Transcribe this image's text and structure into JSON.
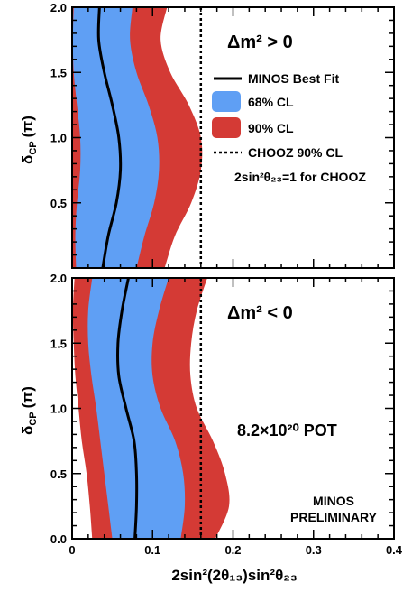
{
  "chart_data": [
    {
      "type": "area",
      "panel": "top",
      "annotation_title": "Δm² > 0",
      "xlim": [
        0,
        0.4
      ],
      "ylim": [
        0,
        2.0
      ],
      "x_ticks": [
        "0",
        "0.1",
        "0.2",
        "0.3",
        "0.4"
      ],
      "y_ticks": [
        "0.5",
        "1.0",
        "1.5",
        "2.0"
      ],
      "ylabel_main": "δ",
      "ylabel_sub": "CP",
      "ylabel_unit": "(π)",
      "chooz_limit_x": 0.16,
      "legend": [
        {
          "key": "best_fit",
          "label": "MINOS Best Fit"
        },
        {
          "key": "cl68",
          "label": "68% CL"
        },
        {
          "key": "cl90",
          "label": "90% CL"
        },
        {
          "key": "chooz",
          "label": "CHOOZ 90% CL"
        }
      ],
      "chooz_note": "2sin²θ₂₃=1 for CHOOZ",
      "colors": {
        "cl68": "#5f9ff4",
        "cl90": "#d43a35",
        "best_fit": "#000000",
        "chooz": "#000000"
      },
      "series": [
        {
          "name": "90% CL",
          "y": [
            0,
            0.25,
            0.5,
            0.75,
            1.0,
            1.25,
            1.5,
            1.75,
            2.0
          ],
          "xmin": [
            0,
            0,
            0,
            0,
            0,
            0,
            0,
            0,
            0
          ],
          "xmax": [
            0.115,
            0.128,
            0.148,
            0.16,
            0.16,
            0.145,
            0.122,
            0.11,
            0.118
          ]
        },
        {
          "name": "68% CL",
          "y": [
            0,
            0.25,
            0.5,
            0.75,
            1.0,
            1.25,
            1.5,
            1.75,
            2.0
          ],
          "xmin": [
            0.005,
            0.004,
            0.006,
            0.01,
            0.01,
            0.006,
            0.002,
            0.001,
            0.002
          ],
          "xmax": [
            0.08,
            0.09,
            0.102,
            0.108,
            0.106,
            0.095,
            0.08,
            0.072,
            0.075
          ]
        },
        {
          "name": "MINOS Best Fit",
          "y": [
            0,
            0.25,
            0.5,
            0.75,
            1.0,
            1.25,
            1.5,
            1.75,
            2.0
          ],
          "x": [
            0.038,
            0.045,
            0.055,
            0.06,
            0.058,
            0.05,
            0.04,
            0.033,
            0.034
          ]
        }
      ]
    },
    {
      "type": "area",
      "panel": "bottom",
      "annotation_title": "Δm² < 0",
      "annotation_pot": "8.2×10²⁰ POT",
      "annotation_prelim_1": "MINOS",
      "annotation_prelim_2": "PRELIMINARY",
      "xlim": [
        0,
        0.4
      ],
      "ylim": [
        0,
        2.0
      ],
      "x_ticks": [
        "0",
        "0.1",
        "0.2",
        "0.3",
        "0.4"
      ],
      "y_ticks": [
        "0.0",
        "0.5",
        "1.0",
        "1.5",
        "2.0"
      ],
      "xlabel": "2sin²(2θ₁₃)sin²θ₂₃",
      "ylabel_main": "δ",
      "ylabel_sub": "CP",
      "ylabel_unit": "(π)",
      "chooz_limit_x": 0.16,
      "colors": {
        "cl68": "#5f9ff4",
        "cl90": "#d43a35",
        "best_fit": "#000000",
        "chooz": "#000000"
      },
      "series": [
        {
          "name": "90% CL",
          "y": [
            0,
            0.25,
            0.5,
            0.75,
            1.0,
            1.25,
            1.5,
            1.75,
            2.0
          ],
          "xmin": [
            0.025,
            0.022,
            0.018,
            0.012,
            0.008,
            0.004,
            0.002,
            0.001,
            0.003
          ],
          "xmax": [
            0.178,
            0.195,
            0.19,
            0.175,
            0.155,
            0.147,
            0.148,
            0.155,
            0.168
          ]
        },
        {
          "name": "68% CL",
          "y": [
            0,
            0.25,
            0.5,
            0.75,
            1.0,
            1.25,
            1.5,
            1.75,
            2.0
          ],
          "xmin": [
            0.05,
            0.045,
            0.04,
            0.035,
            0.03,
            0.024,
            0.02,
            0.02,
            0.025
          ],
          "xmax": [
            0.135,
            0.14,
            0.138,
            0.128,
            0.11,
            0.1,
            0.1,
            0.108,
            0.12
          ]
        },
        {
          "name": "MINOS Best Fit",
          "y": [
            0,
            0.25,
            0.5,
            0.75,
            1.0,
            1.25,
            1.5,
            1.75,
            2.0
          ],
          "x": [
            0.078,
            0.08,
            0.08,
            0.077,
            0.067,
            0.058,
            0.057,
            0.062,
            0.07
          ]
        }
      ]
    }
  ]
}
